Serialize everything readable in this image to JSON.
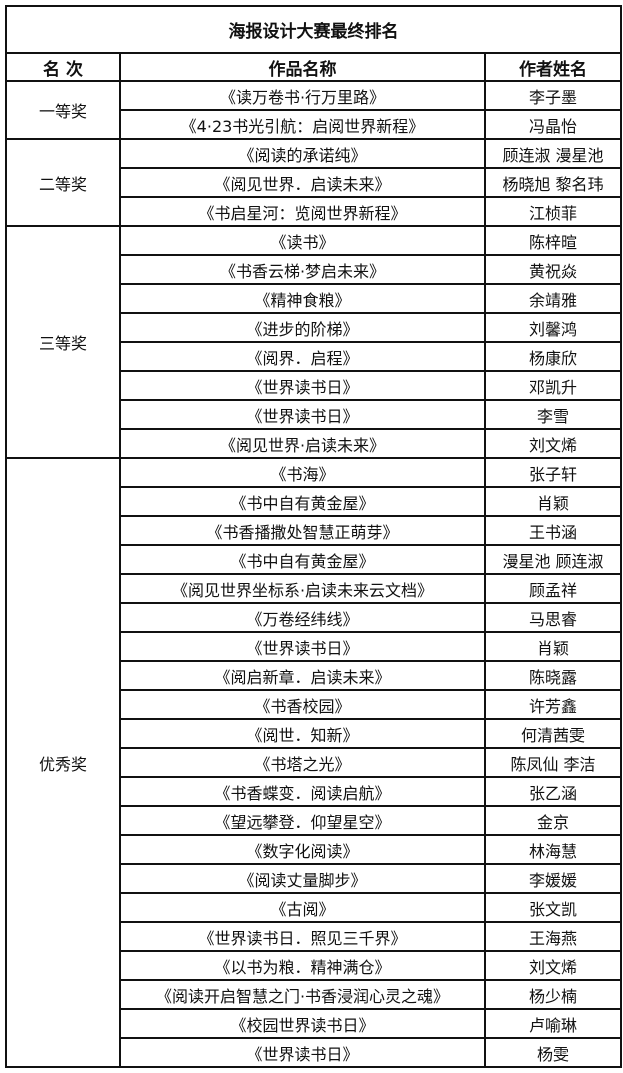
{
  "title": "海报设计大赛最终排名",
  "headers": {
    "rank": "名 次",
    "work": "作品名称",
    "author": "作者姓名"
  },
  "groups": [
    {
      "rank": "一等奖",
      "entries": [
        {
          "work": "《读万卷书·行万里路》",
          "author": "李子墨"
        },
        {
          "work": "《4·23书光引航：启阅世界新程》",
          "author": "冯晶怡"
        }
      ]
    },
    {
      "rank": "二等奖",
      "entries": [
        {
          "work": "《阅读的承诺纯》",
          "author": "顾连淑  漫星池"
        },
        {
          "work": "《阅见世界．启读未来》",
          "author": "杨晓旭  黎名玮"
        },
        {
          "work": "《书启星河：览阅世界新程》",
          "author": "江桢菲"
        }
      ]
    },
    {
      "rank": "三等奖",
      "entries": [
        {
          "work": "《读书》",
          "author": "陈梓暄"
        },
        {
          "work": "《书香云梯·梦启未来》",
          "author": "黄祝焱"
        },
        {
          "work": "《精神食粮》",
          "author": "余靖雅"
        },
        {
          "work": "《进步的阶梯》",
          "author": "刘馨鸿"
        },
        {
          "work": "《阅界．启程》",
          "author": "杨康欣"
        },
        {
          "work": "《世界读书日》",
          "author": "邓凯升"
        },
        {
          "work": "《世界读书日》",
          "author": "李雪"
        },
        {
          "work": "《阅见世界·启读未来》",
          "author": "刘文烯"
        }
      ]
    },
    {
      "rank": "优秀奖",
      "entries": [
        {
          "work": "《书海》",
          "author": "张子轩"
        },
        {
          "work": "《书中自有黄金屋》",
          "author": "肖颖"
        },
        {
          "work": "《书香播撒处智慧正萌芽》",
          "author": "王书涵"
        },
        {
          "work": "《书中自有黄金屋》",
          "author": "漫星池  顾连淑"
        },
        {
          "work": "《阅见世界坐标系·启读未来云文档》",
          "author": "顾孟祥"
        },
        {
          "work": "《万卷经纬线》",
          "author": "马思睿"
        },
        {
          "work": "《世界读书日》",
          "author": "肖颖"
        },
        {
          "work": "《阅启新章．启读未来》",
          "author": "陈晓露"
        },
        {
          "work": "《书香校园》",
          "author": "许芳鑫"
        },
        {
          "work": "《阅世．知新》",
          "author": "何清茜雯"
        },
        {
          "work": "《书塔之光》",
          "author": "陈凤仙  李洁"
        },
        {
          "work": "《书香蝶变．阅读启航》",
          "author": "张乙涵"
        },
        {
          "work": "《望远攀登．仰望星空》",
          "author": "金京"
        },
        {
          "work": "《数字化阅读》",
          "author": "林海慧"
        },
        {
          "work": "《阅读丈量脚步》",
          "author": "李媛媛"
        },
        {
          "work": "《古阅》",
          "author": "张文凯"
        },
        {
          "work": "《世界读书日．照见三千界》",
          "author": "王海燕"
        },
        {
          "work": "《以书为粮．精神满仓》",
          "author": "刘文烯"
        },
        {
          "work": "《阅读开启智慧之门·书香浸润心灵之魂》",
          "author": "杨少楠"
        },
        {
          "work": "《校园世界读书日》",
          "author": "卢喻琳"
        },
        {
          "work": "《世界读书日》",
          "author": "杨雯"
        }
      ]
    }
  ]
}
